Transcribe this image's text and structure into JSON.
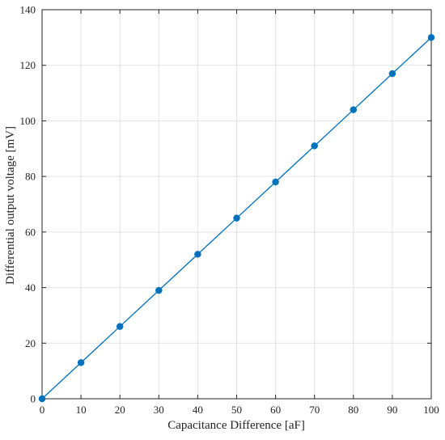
{
  "chart_data": {
    "type": "line",
    "title": "",
    "xlabel": "Capacitance Difference [aF]",
    "ylabel": "Differential output voltage [mV]",
    "xlim": [
      0,
      100
    ],
    "ylim": [
      0,
      140
    ],
    "x_ticks": [
      "0",
      "10",
      "20",
      "30",
      "40",
      "50",
      "60",
      "70",
      "80",
      "90",
      "100"
    ],
    "y_ticks": [
      "0",
      "20",
      "40",
      "60",
      "80",
      "100",
      "120",
      "140"
    ],
    "grid": true,
    "legend": "none",
    "series": [
      {
        "x": [
          0,
          10,
          20,
          30,
          40,
          50,
          60,
          70,
          80,
          90,
          100
        ],
        "y": [
          0,
          13,
          26,
          39,
          52,
          65,
          78,
          91,
          104,
          117,
          130
        ],
        "color": "#0072BD",
        "marker": "circle"
      }
    ],
    "colors": {
      "line": "#0072BD",
      "grid": "#e2e2e2",
      "axis": "#262626"
    }
  }
}
